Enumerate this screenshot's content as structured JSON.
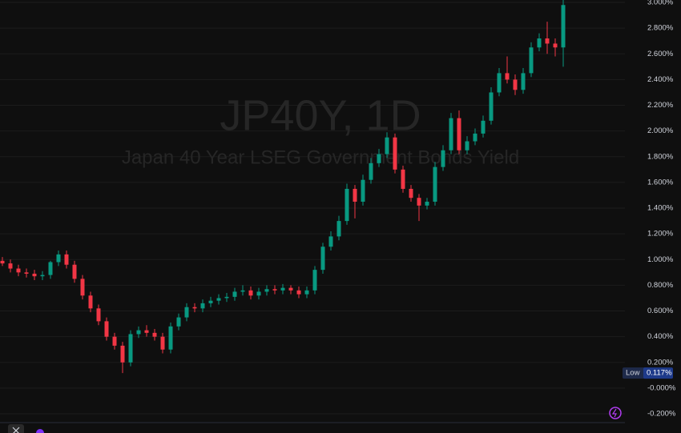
{
  "chart_data": {
    "type": "candlestick",
    "title": "JP40Y, 1D",
    "subtitle": "Japan 40 Year LSEG Government Bonds Yield",
    "up_color": "#089981",
    "down_color": "#f23645",
    "series": {
      "open": [
        0.99,
        0.97,
        0.93,
        0.9,
        0.89,
        0.87,
        0.88,
        0.98,
        1.04,
        0.96,
        0.85,
        0.72,
        0.62,
        0.52,
        0.4,
        0.33,
        0.2,
        0.42,
        0.45,
        0.43,
        0.4,
        0.3,
        0.48,
        0.55,
        0.63,
        0.62,
        0.66,
        0.68,
        0.7,
        0.71,
        0.75,
        0.76,
        0.72,
        0.75,
        0.77,
        0.76,
        0.78,
        0.76,
        0.73,
        0.76,
        0.92,
        1.1,
        1.18,
        1.3,
        1.55,
        1.45,
        1.62,
        1.75,
        1.82,
        1.95,
        1.7,
        1.55,
        1.48,
        1.42,
        1.45,
        1.72,
        1.85,
        2.1,
        1.85,
        1.92,
        1.98,
        2.08,
        2.3,
        2.45,
        2.4,
        2.32,
        2.45,
        2.65,
        2.72,
        2.68,
        2.65
      ],
      "high": [
        1.02,
        1.0,
        0.96,
        0.93,
        0.92,
        0.91,
        0.99,
        1.07,
        1.07,
        0.99,
        0.88,
        0.75,
        0.65,
        0.55,
        0.43,
        0.36,
        0.45,
        0.48,
        0.49,
        0.46,
        0.43,
        0.51,
        0.58,
        0.66,
        0.66,
        0.69,
        0.71,
        0.73,
        0.74,
        0.78,
        0.8,
        0.79,
        0.78,
        0.8,
        0.8,
        0.81,
        0.8,
        0.79,
        0.79,
        0.95,
        1.13,
        1.22,
        1.34,
        1.59,
        1.58,
        1.66,
        1.79,
        1.86,
        1.99,
        1.98,
        1.73,
        1.58,
        1.51,
        1.48,
        1.76,
        1.89,
        2.14,
        2.16,
        1.96,
        2.02,
        2.12,
        2.34,
        2.49,
        2.58,
        2.44,
        2.49,
        2.69,
        2.76,
        2.85,
        2.72,
        3.02
      ],
      "low": [
        0.95,
        0.9,
        0.87,
        0.86,
        0.84,
        0.84,
        0.85,
        0.95,
        0.93,
        0.82,
        0.69,
        0.59,
        0.49,
        0.37,
        0.3,
        0.117,
        0.17,
        0.39,
        0.4,
        0.37,
        0.27,
        0.27,
        0.45,
        0.52,
        0.59,
        0.59,
        0.63,
        0.65,
        0.67,
        0.68,
        0.72,
        0.69,
        0.69,
        0.72,
        0.73,
        0.73,
        0.73,
        0.7,
        0.7,
        0.73,
        0.89,
        1.07,
        1.15,
        1.27,
        1.32,
        1.42,
        1.59,
        1.72,
        1.79,
        1.67,
        1.52,
        1.45,
        1.3,
        1.39,
        1.42,
        1.69,
        1.82,
        1.82,
        1.82,
        1.89,
        1.95,
        2.05,
        2.27,
        2.37,
        2.28,
        2.29,
        2.42,
        2.62,
        2.6,
        2.58,
        2.5
      ],
      "close": [
        0.97,
        0.93,
        0.9,
        0.89,
        0.87,
        0.88,
        0.98,
        1.04,
        0.96,
        0.85,
        0.72,
        0.62,
        0.52,
        0.4,
        0.33,
        0.2,
        0.42,
        0.45,
        0.43,
        0.4,
        0.3,
        0.48,
        0.55,
        0.63,
        0.62,
        0.66,
        0.68,
        0.7,
        0.71,
        0.75,
        0.76,
        0.72,
        0.75,
        0.77,
        0.76,
        0.78,
        0.76,
        0.73,
        0.76,
        0.92,
        1.1,
        1.18,
        1.3,
        1.55,
        1.45,
        1.62,
        1.75,
        1.82,
        1.95,
        1.7,
        1.55,
        1.48,
        1.42,
        1.45,
        1.72,
        1.85,
        2.1,
        1.85,
        1.92,
        1.98,
        2.08,
        2.3,
        2.45,
        2.4,
        2.32,
        2.45,
        2.65,
        2.72,
        2.68,
        2.65,
        2.98
      ]
    },
    "ylim": [
      -0.262,
      3.019
    ],
    "yticks": [
      {
        "value": 3.0,
        "label": "3.000%"
      },
      {
        "value": 2.8,
        "label": "2.800%"
      },
      {
        "value": 2.6,
        "label": "2.600%"
      },
      {
        "value": 2.4,
        "label": "2.400%"
      },
      {
        "value": 2.2,
        "label": "2.200%"
      },
      {
        "value": 2.0,
        "label": "2.000%"
      },
      {
        "value": 1.8,
        "label": "1.800%"
      },
      {
        "value": 1.6,
        "label": "1.600%"
      },
      {
        "value": 1.4,
        "label": "1.400%"
      },
      {
        "value": 1.2,
        "label": "1.200%"
      },
      {
        "value": 1.0,
        "label": "1.000%"
      },
      {
        "value": 0.8,
        "label": "0.800%"
      },
      {
        "value": 0.6,
        "label": "0.600%"
      },
      {
        "value": 0.4,
        "label": "0.400%"
      },
      {
        "value": 0.2,
        "label": "0.200%"
      },
      {
        "value": 0,
        "label": "-0.000%"
      },
      {
        "value": -0.2,
        "label": "-0.200%"
      }
    ],
    "grid": true,
    "low_marker": {
      "label": "Low",
      "value": 0.117,
      "value_label": "0.117%"
    }
  }
}
